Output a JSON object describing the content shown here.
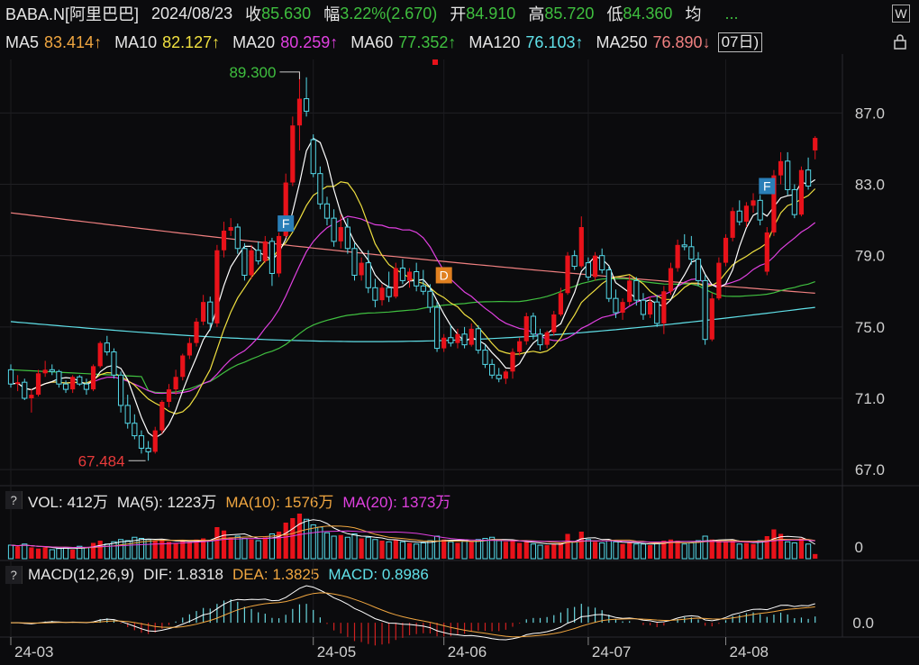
{
  "header": {
    "symbol": "BABA.N[阿里巴巴]",
    "date": "2024/08/23",
    "close_label": "收",
    "close": "85.630",
    "change_label": "幅",
    "change": "3.22%(2.670)",
    "open_label": "开",
    "open": "84.910",
    "high_label": "高",
    "high": "85.720",
    "low_label": "低",
    "low": "84.360",
    "avg_label": "均",
    "more": "...",
    "right_icon": "W"
  },
  "ma_row": {
    "ma5": "MA5",
    "ma5_value": "83.414↑",
    "ma10": "MA10",
    "ma10_value": "82.127↑",
    "ma20": "MA20",
    "ma20_value": "80.259↑",
    "ma60": "MA60",
    "ma60_value": "77.352↑",
    "ma120": "MA120",
    "ma120_value": "76.103↑",
    "ma250": "MA250",
    "ma250_value": "76.890↓",
    "period_button": "07日)",
    "lock_icon": "lock-icon"
  },
  "vol_panel": {
    "help": "?",
    "label": "VOL: 412万",
    "ma5": "MA(5): 1223万",
    "ma10": "MA(10): 1576万",
    "ma20": "MA(20): 1373万",
    "axis": "0"
  },
  "macd_panel": {
    "help": "?",
    "label": "MACD(12,26,9)",
    "dif": "DIF: 1.8318",
    "dea": "DEA: 1.3825",
    "macd": "MACD: 0.8986",
    "axis": "0.0"
  },
  "annotations": {
    "high_marker": "89.300",
    "low_marker": "67.484",
    "f1": "F",
    "f2": "F",
    "d": "D"
  },
  "colors": {
    "up": "#e8121a",
    "down": "#54d8e8",
    "ma5": "#ffffff",
    "ma10": "#f0e040",
    "ma20": "#e040e0",
    "ma60": "#40c040",
    "ma120": "#60e0e8",
    "ma250": "#f08080"
  },
  "chart_data": {
    "type": "candlestick",
    "y_ticks": [
      "87.0",
      "83.0",
      "79.0",
      "75.0",
      "71.0",
      "67.0"
    ],
    "ylim": [
      66.2,
      90.0
    ],
    "x_ticks": [
      "24-03",
      "24-05",
      "24-06",
      "24-07",
      "24-08"
    ],
    "x_tick_index": [
      0,
      44,
      63,
      84,
      104
    ],
    "ohlc": [
      [
        72.6,
        72.9,
        71.6,
        71.8
      ],
      [
        71.8,
        72.3,
        71.4,
        71.9
      ],
      [
        71.9,
        72.1,
        70.9,
        71.0
      ],
      [
        71.0,
        71.5,
        70.2,
        71.2
      ],
      [
        71.2,
        72.6,
        71.1,
        72.4
      ],
      [
        72.4,
        73.1,
        72.2,
        72.6
      ],
      [
        72.6,
        72.9,
        72.3,
        72.5
      ],
      [
        72.5,
        72.6,
        71.6,
        71.8
      ],
      [
        71.8,
        72.0,
        71.3,
        71.5
      ],
      [
        71.5,
        72.3,
        71.3,
        72.2
      ],
      [
        72.2,
        72.3,
        71.7,
        71.8
      ],
      [
        71.8,
        72.1,
        71.2,
        71.5
      ],
      [
        71.5,
        72.9,
        71.4,
        72.8
      ],
      [
        72.8,
        74.2,
        72.7,
        74.1
      ],
      [
        74.1,
        74.5,
        73.4,
        73.6
      ],
      [
        73.6,
        73.8,
        72.1,
        72.3
      ],
      [
        72.3,
        72.5,
        70.2,
        70.6
      ],
      [
        70.6,
        71.2,
        69.3,
        69.6
      ],
      [
        69.6,
        70.1,
        68.7,
        68.9
      ],
      [
        68.9,
        69.2,
        67.9,
        68.2
      ],
      [
        68.2,
        68.6,
        67.5,
        68.0
      ],
      [
        68.0,
        69.4,
        67.9,
        69.2
      ],
      [
        69.2,
        70.9,
        69.0,
        70.8
      ],
      [
        70.8,
        71.8,
        70.5,
        71.5
      ],
      [
        71.5,
        72.6,
        71.2,
        72.2
      ],
      [
        72.2,
        73.5,
        72.0,
        73.4
      ],
      [
        73.4,
        74.4,
        73.2,
        74.1
      ],
      [
        74.1,
        75.5,
        73.9,
        75.3
      ],
      [
        75.3,
        76.8,
        75.1,
        76.4
      ],
      [
        76.4,
        76.7,
        74.8,
        75.2
      ],
      [
        75.2,
        79.6,
        75.0,
        79.3
      ],
      [
        79.3,
        80.9,
        78.9,
        80.4
      ],
      [
        80.4,
        81.1,
        80.1,
        80.6
      ],
      [
        80.6,
        80.8,
        79.1,
        79.4
      ],
      [
        79.4,
        79.7,
        77.6,
        77.9
      ],
      [
        77.9,
        79.6,
        77.7,
        79.3
      ],
      [
        79.3,
        79.8,
        78.5,
        78.7
      ],
      [
        78.7,
        80.1,
        78.6,
        79.8
      ],
      [
        79.8,
        80.0,
        77.3,
        78.0
      ],
      [
        78.0,
        80.3,
        77.8,
        80.1
      ],
      [
        80.1,
        83.6,
        80.0,
        83.1
      ],
      [
        83.1,
        86.8,
        82.9,
        86.3
      ],
      [
        86.3,
        89.3,
        84.9,
        87.8
      ],
      [
        87.8,
        89.0,
        86.8,
        87.1
      ],
      [
        85.5,
        85.8,
        83.4,
        83.6
      ],
      [
        83.6,
        84.0,
        81.6,
        81.9
      ],
      [
        81.9,
        82.3,
        80.7,
        81.1
      ],
      [
        81.1,
        81.6,
        79.5,
        79.8
      ],
      [
        79.8,
        81.3,
        79.4,
        80.6
      ],
      [
        80.6,
        81.1,
        79.1,
        79.4
      ],
      [
        79.4,
        79.7,
        77.6,
        77.9
      ],
      [
        77.9,
        78.9,
        77.6,
        78.6
      ],
      [
        78.6,
        79.3,
        76.9,
        77.2
      ],
      [
        77.2,
        77.7,
        76.1,
        76.5
      ],
      [
        76.5,
        77.4,
        76.2,
        77.2
      ],
      [
        77.2,
        78.1,
        76.4,
        76.7
      ],
      [
        76.7,
        78.6,
        76.6,
        78.3
      ],
      [
        78.3,
        78.8,
        77.4,
        77.6
      ],
      [
        77.6,
        78.3,
        77.2,
        78.1
      ],
      [
        78.1,
        78.6,
        77.0,
        77.3
      ],
      [
        77.3,
        78.2,
        76.8,
        77.0
      ],
      [
        77.0,
        77.4,
        75.8,
        76.1
      ],
      [
        76.1,
        76.4,
        73.6,
        73.8
      ],
      [
        73.8,
        74.6,
        73.6,
        74.4
      ],
      [
        74.4,
        75.1,
        73.9,
        74.1
      ],
      [
        74.1,
        74.9,
        73.8,
        74.6
      ],
      [
        74.6,
        75.0,
        73.8,
        74.0
      ],
      [
        74.0,
        75.2,
        73.9,
        74.9
      ],
      [
        74.9,
        75.1,
        73.5,
        73.7
      ],
      [
        73.7,
        74.0,
        72.7,
        72.9
      ],
      [
        72.9,
        73.2,
        72.1,
        72.3
      ],
      [
        72.3,
        72.7,
        71.9,
        72.1
      ],
      [
        72.1,
        72.6,
        71.8,
        72.5
      ],
      [
        72.5,
        73.8,
        72.1,
        73.6
      ],
      [
        73.6,
        74.4,
        73.4,
        74.2
      ],
      [
        74.2,
        75.8,
        74.0,
        75.6
      ],
      [
        75.6,
        75.8,
        74.3,
        74.6
      ],
      [
        74.6,
        74.9,
        73.7,
        74.0
      ],
      [
        74.0,
        74.8,
        73.8,
        74.7
      ],
      [
        74.7,
        75.9,
        74.5,
        75.7
      ],
      [
        75.7,
        77.2,
        75.6,
        76.9
      ],
      [
        76.9,
        79.2,
        76.8,
        79.0
      ],
      [
        79.0,
        79.3,
        78.2,
        78.4
      ],
      [
        78.4,
        81.2,
        78.3,
        80.6
      ],
      [
        78.6,
        78.9,
        77.6,
        77.8
      ],
      [
        77.8,
        79.2,
        77.6,
        79.0
      ],
      [
        79.0,
        79.4,
        78.0,
        78.2
      ],
      [
        78.2,
        78.4,
        76.4,
        76.6
      ],
      [
        76.6,
        77.1,
        75.5,
        75.8
      ],
      [
        75.8,
        76.6,
        75.4,
        76.4
      ],
      [
        76.4,
        77.9,
        76.2,
        77.6
      ],
      [
        77.6,
        77.8,
        76.2,
        76.5
      ],
      [
        76.5,
        76.9,
        75.4,
        75.7
      ],
      [
        75.7,
        76.7,
        75.5,
        76.4
      ],
      [
        76.4,
        76.8,
        75.0,
        75.2
      ],
      [
        75.2,
        77.3,
        74.6,
        77.0
      ],
      [
        77.0,
        78.6,
        76.8,
        78.3
      ],
      [
        78.3,
        79.9,
        78.1,
        79.6
      ],
      [
        79.6,
        80.2,
        79.3,
        79.5
      ],
      [
        79.5,
        80.1,
        78.5,
        78.8
      ],
      [
        78.8,
        79.2,
        77.3,
        77.6
      ],
      [
        77.6,
        77.9,
        74.0,
        74.3
      ],
      [
        74.3,
        76.9,
        74.2,
        76.6
      ],
      [
        76.6,
        78.9,
        76.5,
        78.6
      ],
      [
        78.6,
        80.2,
        78.4,
        80.0
      ],
      [
        80.0,
        81.7,
        79.8,
        81.5
      ],
      [
        81.5,
        82.1,
        80.7,
        80.9
      ],
      [
        80.9,
        82.0,
        80.6,
        81.8
      ],
      [
        81.8,
        82.5,
        81.4,
        82.1
      ],
      [
        82.1,
        82.4,
        80.7,
        81.0
      ],
      [
        78.1,
        80.6,
        77.9,
        80.3
      ],
      [
        80.3,
        83.8,
        80.1,
        83.5
      ],
      [
        83.5,
        84.8,
        83.0,
        84.3
      ],
      [
        84.3,
        84.8,
        82.4,
        82.7
      ],
      [
        82.7,
        83.0,
        81.1,
        81.3
      ],
      [
        81.3,
        84.0,
        81.2,
        83.8
      ],
      [
        83.8,
        84.5,
        82.7,
        82.9
      ],
      [
        84.9,
        85.7,
        84.4,
        85.6
      ]
    ],
    "volume_wan": [
      1200,
      1100,
      1300,
      1000,
      900,
      1000,
      800,
      900,
      1000,
      800,
      1100,
      1000,
      1400,
      1600,
      1300,
      1500,
      1700,
      1600,
      1900,
      1800,
      1700,
      1600,
      1700,
      1500,
      1400,
      1600,
      1500,
      1700,
      1800,
      1600,
      2800,
      2500,
      1900,
      2000,
      1800,
      1700,
      1600,
      1900,
      2200,
      2400,
      3200,
      3600,
      4000,
      3500,
      3000,
      2800,
      2300,
      2000,
      2100,
      1900,
      2200,
      1800,
      1900,
      1700,
      1600,
      1500,
      1700,
      1500,
      1400,
      1300,
      1400,
      1600,
      2000,
      1700,
      1500,
      1400,
      1600,
      1500,
      1700,
      1800,
      1900,
      1600,
      1500,
      1600,
      1400,
      1500,
      1300,
      1200,
      1200,
      1300,
      1400,
      2200,
      1500,
      2400,
      1700,
      1500,
      1400,
      1600,
      1500,
      1300,
      1400,
      1300,
      1300,
      1200,
      1400,
      1600,
      1700,
      1600,
      1300,
      1400,
      1600,
      2000,
      1700,
      1600,
      1500,
      1700,
      1300,
      1400,
      1300,
      1600,
      2000,
      2600,
      2200,
      1500,
      1400,
      1800,
      1300,
      412
    ],
    "ma_series": [
      {
        "name": "MA5"
      },
      {
        "name": "MA10"
      },
      {
        "name": "MA20"
      },
      {
        "name": "MA60",
        "start": 72.6,
        "end": 77.35
      },
      {
        "name": "MA120",
        "start": 75.3,
        "end": 76.1
      },
      {
        "name": "MA250",
        "start": 81.4,
        "end": 76.89
      }
    ],
    "macd_ylim": [
      -1.3,
      3.2
    ]
  }
}
